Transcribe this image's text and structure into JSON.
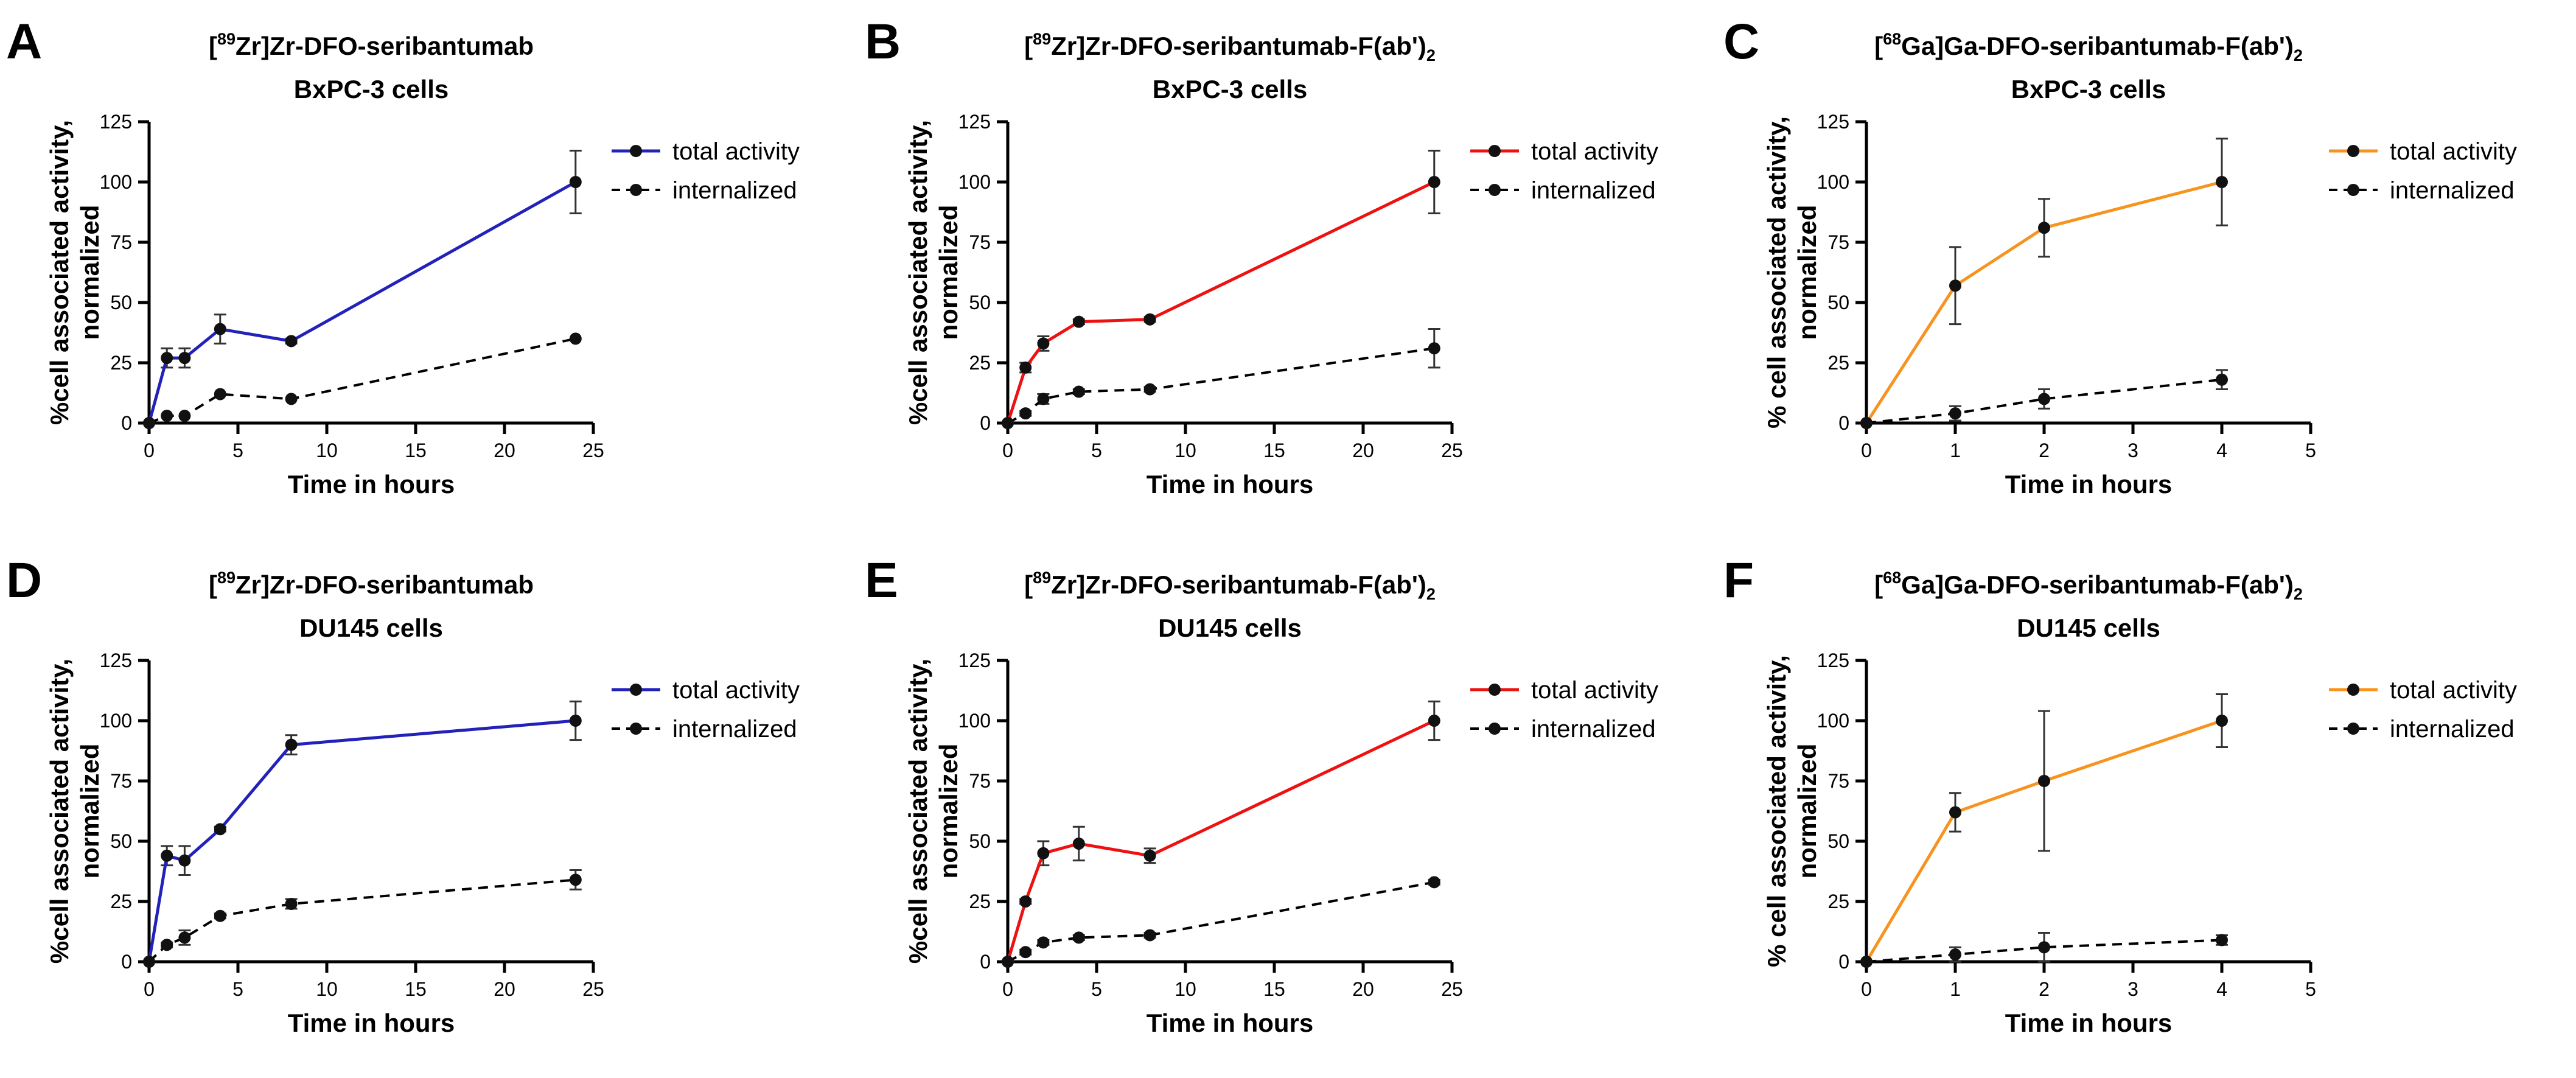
{
  "chart_data": [
    {
      "panel": "A",
      "type": "line",
      "title_parts": [
        "[",
        "89",
        "Zr]Zr-DFO-seribantumab",
        "",
        "",
        "BxPC-3 cells"
      ],
      "xlabel": "Time in hours",
      "ylabel": [
        "%cell associated activity,",
        "normalized"
      ],
      "xlim": [
        0,
        25
      ],
      "ylim": [
        0,
        125
      ],
      "xticks": [
        0,
        5,
        10,
        15,
        20,
        25
      ],
      "yticks": [
        0,
        25,
        50,
        75,
        100,
        125
      ],
      "legend_position": "top-right",
      "series": [
        {
          "name": "total activity",
          "color": "#2222bb",
          "dashed": false,
          "x": [
            0,
            1,
            2,
            4,
            8,
            24
          ],
          "y": [
            0,
            27,
            27,
            39,
            34,
            100
          ],
          "err": [
            0,
            4,
            4,
            6,
            1,
            13
          ]
        },
        {
          "name": "internalized",
          "color": "#000000",
          "dashed": true,
          "x": [
            0,
            1,
            2,
            4,
            8,
            24
          ],
          "y": [
            0,
            3,
            3,
            12,
            10,
            35
          ],
          "err": [
            0,
            0,
            0,
            0,
            0,
            0
          ]
        }
      ]
    },
    {
      "panel": "B",
      "type": "line",
      "title_parts": [
        "[",
        "89",
        "Zr]Zr-DFO-seribantumab-F(ab')",
        "2",
        "",
        "BxPC-3 cells"
      ],
      "xlabel": "Time in hours",
      "ylabel": [
        "%cell associated activity,",
        "normalized"
      ],
      "xlim": [
        0,
        25
      ],
      "ylim": [
        0,
        125
      ],
      "xticks": [
        0,
        5,
        10,
        15,
        20,
        25
      ],
      "yticks": [
        0,
        25,
        50,
        75,
        100,
        125
      ],
      "legend_position": "top-right",
      "series": [
        {
          "name": "total activity",
          "color": "#ee1111",
          "dashed": false,
          "x": [
            0,
            1,
            2,
            4,
            8,
            24
          ],
          "y": [
            0,
            23,
            33,
            42,
            43,
            100
          ],
          "err": [
            0,
            2,
            3,
            1,
            1,
            13
          ]
        },
        {
          "name": "internalized",
          "color": "#000000",
          "dashed": true,
          "x": [
            0,
            1,
            2,
            4,
            8,
            24
          ],
          "y": [
            0,
            4,
            10,
            13,
            14,
            31
          ],
          "err": [
            0,
            1,
            2,
            1,
            1,
            8
          ]
        }
      ]
    },
    {
      "panel": "C",
      "type": "line",
      "title_parts": [
        "[",
        "68",
        "Ga]Ga-DFO-seribantumab-F(ab')",
        "2",
        "",
        "BxPC-3 cells"
      ],
      "xlabel": "Time in hours",
      "ylabel": [
        "% cell associated activity,",
        "normalized"
      ],
      "xlim": [
        0,
        5
      ],
      "ylim": [
        0,
        125
      ],
      "xticks": [
        0,
        1,
        2,
        3,
        4,
        5
      ],
      "yticks": [
        0,
        25,
        50,
        75,
        100,
        125
      ],
      "legend_position": "top-right",
      "series": [
        {
          "name": "total activity",
          "color": "#f7931e",
          "dashed": false,
          "x": [
            0,
            1,
            2,
            4
          ],
          "y": [
            0,
            57,
            81,
            100
          ],
          "err": [
            0,
            16,
            12,
            18
          ]
        },
        {
          "name": "internalized",
          "color": "#000000",
          "dashed": true,
          "x": [
            0,
            1,
            2,
            4
          ],
          "y": [
            0,
            4,
            10,
            18
          ],
          "err": [
            0,
            3,
            4,
            4
          ]
        }
      ]
    },
    {
      "panel": "D",
      "type": "line",
      "title_parts": [
        "[",
        "89",
        "Zr]Zr-DFO-seribantumab",
        "",
        "",
        "DU145 cells"
      ],
      "xlabel": "Time in hours",
      "ylabel": [
        "%cell associated activity,",
        "normalized"
      ],
      "xlim": [
        0,
        25
      ],
      "ylim": [
        0,
        125
      ],
      "xticks": [
        0,
        5,
        10,
        15,
        20,
        25
      ],
      "yticks": [
        0,
        25,
        50,
        75,
        100,
        125
      ],
      "legend_position": "top-right",
      "series": [
        {
          "name": "total activity",
          "color": "#2222bb",
          "dashed": false,
          "x": [
            0,
            1,
            2,
            4,
            8,
            24
          ],
          "y": [
            0,
            44,
            42,
            55,
            90,
            100
          ],
          "err": [
            0,
            4,
            6,
            1,
            4,
            8
          ]
        },
        {
          "name": "internalized",
          "color": "#000000",
          "dashed": true,
          "x": [
            0,
            1,
            2,
            4,
            8,
            24
          ],
          "y": [
            0,
            7,
            10,
            19,
            24,
            34
          ],
          "err": [
            0,
            1,
            3,
            1,
            2,
            4
          ]
        }
      ]
    },
    {
      "panel": "E",
      "type": "line",
      "title_parts": [
        "[",
        "89",
        "Zr]Zr-DFO-seribantumab-F(ab')",
        "2",
        "",
        "DU145 cells"
      ],
      "xlabel": "Time in hours",
      "ylabel": [
        "%cell associated activity,",
        "normalized"
      ],
      "xlim": [
        0,
        25
      ],
      "ylim": [
        0,
        125
      ],
      "xticks": [
        0,
        5,
        10,
        15,
        20,
        25
      ],
      "yticks": [
        0,
        25,
        50,
        75,
        100,
        125
      ],
      "legend_position": "top-right",
      "series": [
        {
          "name": "total activity",
          "color": "#ee1111",
          "dashed": false,
          "x": [
            0,
            1,
            2,
            4,
            8,
            24
          ],
          "y": [
            0,
            25,
            45,
            49,
            44,
            100
          ],
          "err": [
            0,
            1,
            5,
            7,
            3,
            8
          ]
        },
        {
          "name": "internalized",
          "color": "#000000",
          "dashed": true,
          "x": [
            0,
            1,
            2,
            4,
            8,
            24
          ],
          "y": [
            0,
            4,
            8,
            10,
            11,
            33
          ],
          "err": [
            0,
            1,
            1,
            1,
            1,
            1
          ]
        }
      ]
    },
    {
      "panel": "F",
      "type": "line",
      "title_parts": [
        "[",
        "68",
        "Ga]Ga-DFO-seribantumab-F(ab')",
        "2",
        "",
        "DU145 cells"
      ],
      "xlabel": "Time in hours",
      "ylabel": [
        "% cell associated activity,",
        "normalized"
      ],
      "xlim": [
        0,
        5
      ],
      "ylim": [
        0,
        125
      ],
      "xticks": [
        0,
        1,
        2,
        3,
        4,
        5
      ],
      "yticks": [
        0,
        25,
        50,
        75,
        100,
        125
      ],
      "legend_position": "top-right",
      "series": [
        {
          "name": "total activity",
          "color": "#f7931e",
          "dashed": false,
          "x": [
            0,
            1,
            2,
            4
          ],
          "y": [
            0,
            62,
            75,
            100
          ],
          "err": [
            0,
            8,
            29,
            11
          ]
        },
        {
          "name": "internalized",
          "color": "#000000",
          "dashed": true,
          "x": [
            0,
            1,
            2,
            4
          ],
          "y": [
            0,
            3,
            6,
            9
          ],
          "err": [
            0,
            3,
            6,
            2
          ]
        }
      ]
    }
  ]
}
